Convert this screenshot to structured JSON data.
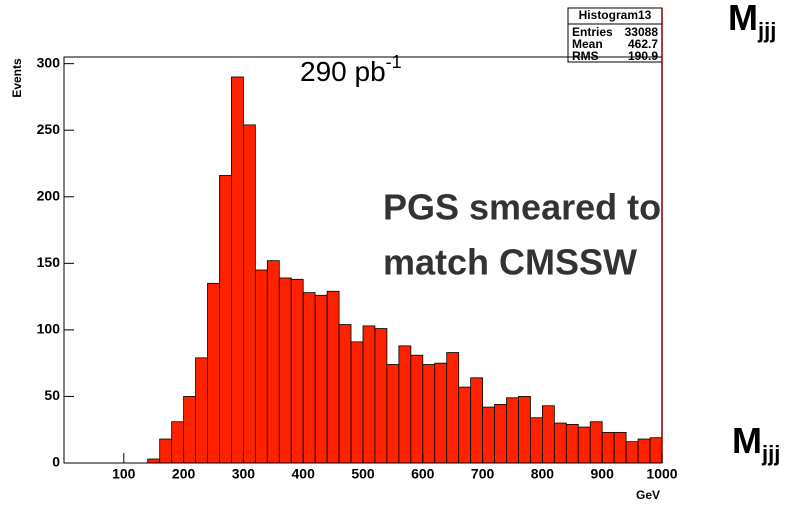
{
  "chart_data": {
    "type": "histogram",
    "bins": [
      0,
      20,
      40,
      60,
      80,
      100,
      120,
      140,
      160,
      180,
      200,
      220,
      240,
      260,
      280,
      300,
      320,
      340,
      360,
      380,
      400,
      420,
      440,
      460,
      480,
      500,
      520,
      540,
      560,
      580,
      600,
      620,
      640,
      660,
      680,
      700,
      720,
      740,
      760,
      780,
      800,
      820,
      840,
      860,
      880,
      900,
      920,
      940,
      960,
      980,
      1000
    ],
    "values": [
      0,
      0,
      0,
      0,
      0,
      0,
      0,
      3,
      18,
      31,
      50,
      79,
      135,
      216,
      290,
      254,
      145,
      152,
      139,
      138,
      128,
      126,
      129,
      104,
      91,
      103,
      101,
      74,
      88,
      81,
      74,
      75,
      83,
      57,
      64,
      42,
      44,
      49,
      50,
      34,
      43,
      30,
      29,
      27,
      31,
      23,
      23,
      16,
      18,
      19
    ],
    "color": "#ff2200",
    "xlim": [
      0,
      1000
    ],
    "ylim": [
      0,
      305
    ],
    "xticks": [
      100,
      200,
      300,
      400,
      500,
      600,
      700,
      800,
      900,
      1000
    ],
    "yticks": [
      0,
      50,
      100,
      150,
      200,
      250,
      300
    ],
    "xlabel": "GeV",
    "ylabel": "Events",
    "stats": {
      "title": "Histogram13",
      "rows": [
        [
          "Entries",
          33088
        ],
        [
          "Mean",
          462.7
        ],
        [
          "RMS",
          190.9
        ]
      ]
    },
    "luminosity": {
      "text": "290 pb",
      "sup": "-1"
    },
    "overlay": [
      "PGS smeared to",
      "match CMSSW"
    ],
    "mass_labels": [
      {
        "text": "M",
        "sub": "jjj"
      },
      {
        "text": "M",
        "sub": "jjj"
      }
    ]
  }
}
